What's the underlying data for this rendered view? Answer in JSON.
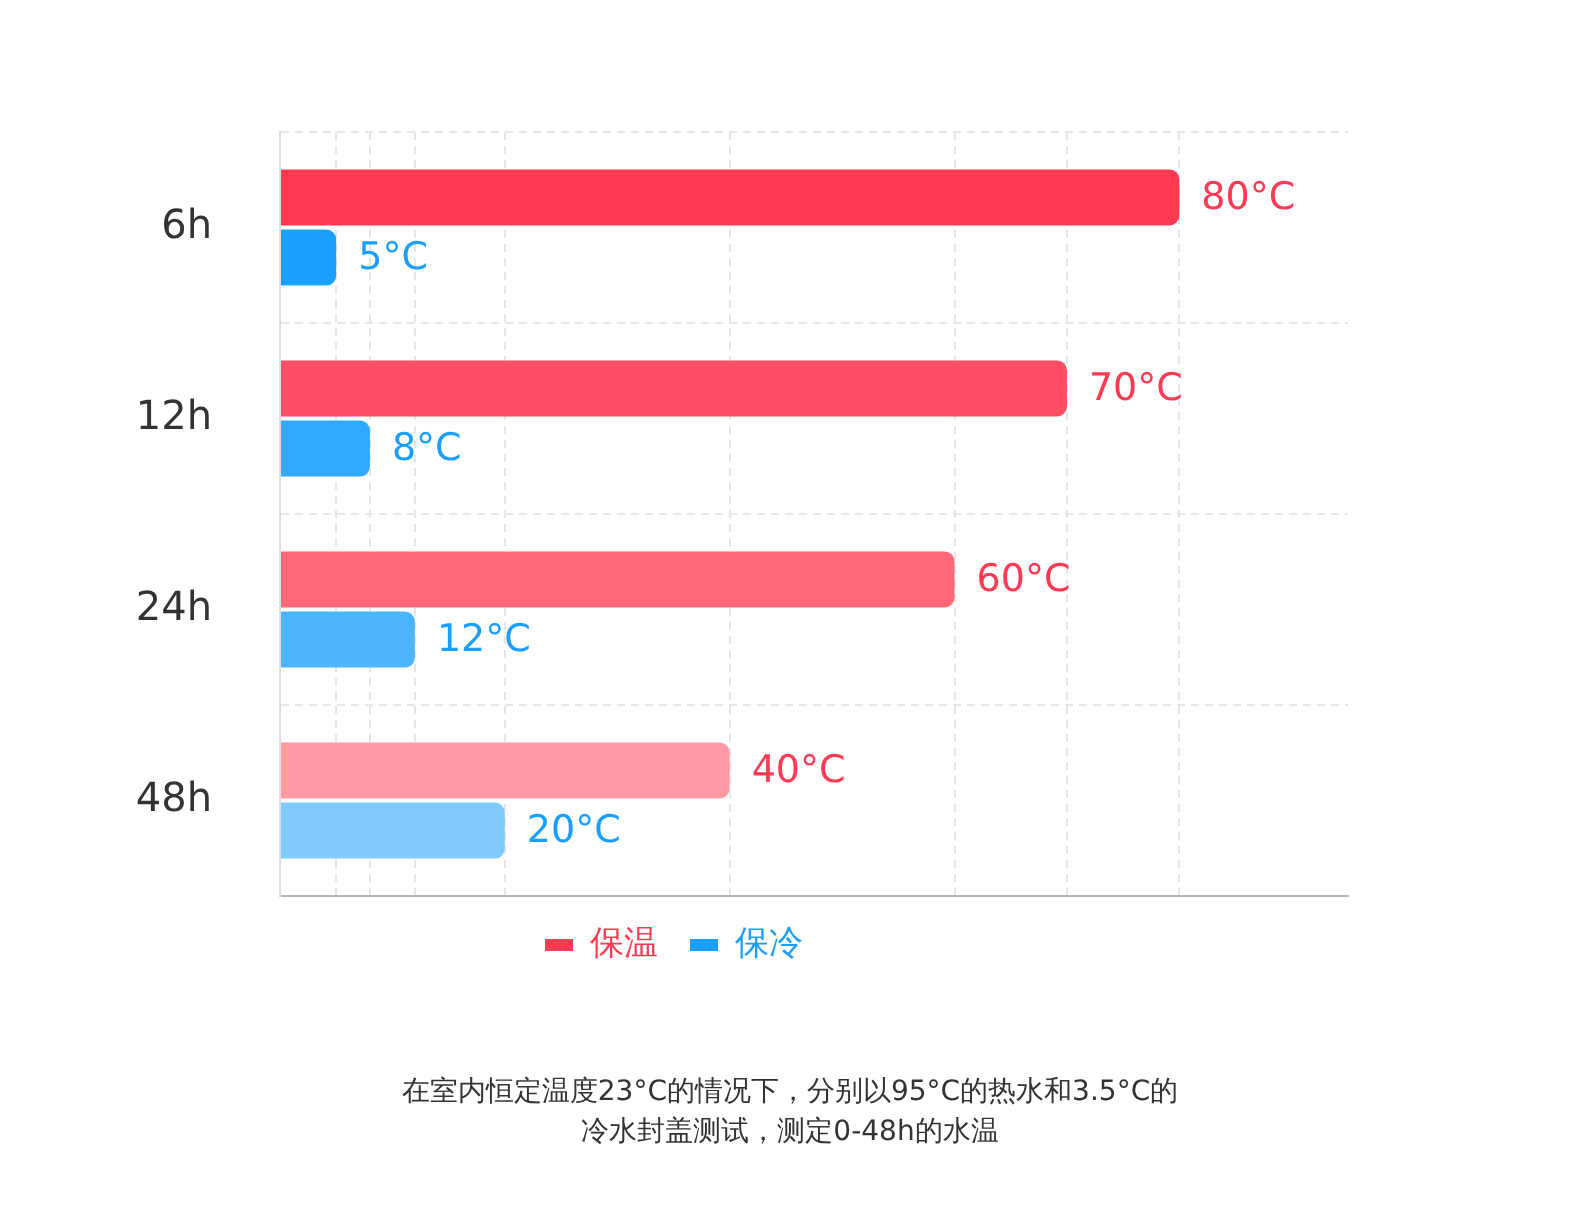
{
  "chart_data": {
    "type": "bar",
    "orientation": "horizontal",
    "categories": [
      "6h",
      "12h",
      "24h",
      "48h"
    ],
    "series": [
      {
        "name": "保温",
        "color": "#ff3a52",
        "colors": [
          "#ff3a50",
          "#ff4d63",
          "#ff6878",
          "#ff9aa5"
        ],
        "values": [
          80,
          70,
          60,
          40
        ],
        "value_labels": [
          "80°C",
          "70°C",
          "60°C",
          "40°C"
        ]
      },
      {
        "name": "保冷",
        "color": "#1a9fff",
        "colors": [
          "#1aa1ff",
          "#30aaff",
          "#4db5ff",
          "#80caff"
        ],
        "values": [
          5,
          8,
          12,
          20
        ],
        "value_labels": [
          "5°C",
          "8°C",
          "12°C",
          "20°C"
        ]
      }
    ],
    "xlim": [
      0,
      95
    ],
    "xticks": [
      {
        "value": 0,
        "label": null
      },
      {
        "value": 5,
        "label": null
      },
      {
        "value": 8,
        "label": null
      },
      {
        "value": 12,
        "label": null
      },
      {
        "value": 20,
        "label": null
      },
      {
        "value": 40,
        "label": null
      },
      {
        "value": 60,
        "label": null
      },
      {
        "value": 70,
        "label": null
      },
      {
        "value": 80,
        "label": null
      }
    ],
    "grid": true,
    "tick_labels": "y",
    "legend": "bottom",
    "annotations": [
      "在室内恒定温度23°C的情况下，分别以95°C的热水和3.5°C的冷水封盖测试，测定0-48h的水温"
    ]
  }
}
